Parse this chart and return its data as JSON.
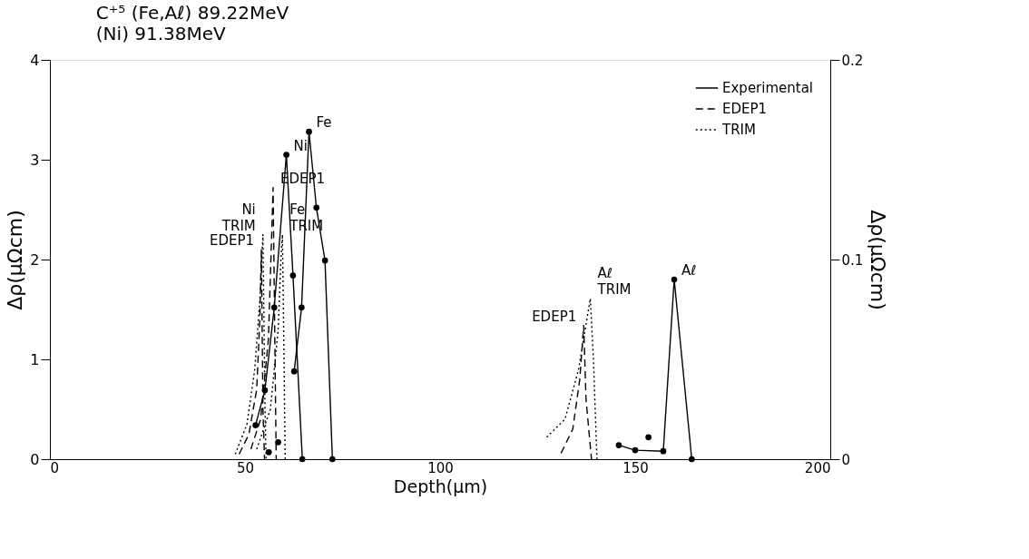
{
  "chart_data": {
    "type": "line",
    "title": "C⁺⁵ (Fe,Aℓ) 89.22MeV",
    "subtitle": "(Ni) 91.38MeV",
    "xlabel": "Depth(μm)",
    "ylabel": "Δρ(μΩcm)",
    "y2label": "Δρ(μΩcm)",
    "xlim": [
      0,
      200
    ],
    "xticks": [
      0,
      50,
      100,
      150,
      200
    ],
    "ylim": [
      0,
      4
    ],
    "yticks": [
      0,
      1,
      2,
      3,
      4
    ],
    "y2lim": [
      0,
      0.2
    ],
    "y2ticks": [
      0,
      0.1,
      0.2
    ],
    "grid": false,
    "legend": "top right",
    "series": [
      {
        "name": "Experimental",
        "color": "#000000",
        "line_style": "solid",
        "marker": "circle",
        "x": [
          52.7,
          55.1,
          57.5,
          60.6,
          62.3,
          64.7
        ],
        "values": [
          0.34,
          0.69,
          1.52,
          3.05,
          1.84,
          0
        ]
      },
      {
        "type": "scatter",
        "color": "#000000",
        "marker": "circle",
        "x": [
          56.1,
          58.5
        ],
        "values": [
          0.07,
          0.17
        ]
      },
      {
        "color": "#000000",
        "line_style": "solid",
        "marker": "circle",
        "x": [
          62.6,
          64.5,
          66.4,
          68.3,
          70.5,
          72.4
        ],
        "values": [
          0.88,
          1.52,
          3.28,
          2.52,
          1.99,
          0
        ]
      },
      {
        "axis": "y2",
        "color": "#000000",
        "line_style": "solid",
        "marker": "circle",
        "x": [
          145.8,
          150,
          157.2,
          160,
          164.5
        ],
        "values": [
          0.007,
          0.0045,
          0.004,
          0.09,
          0
        ]
      },
      {
        "type": "scatter",
        "axis": "y2",
        "color": "#000000",
        "marker": "circle",
        "x": [
          153.4
        ],
        "values": [
          0.011
        ]
      },
      {
        "name": "EDEP1",
        "color": "#000000",
        "line_style": "dashed",
        "marker": "none",
        "x": [
          48.5,
          51,
          53,
          53.8,
          54.2,
          54.6,
          55.0
        ],
        "values": [
          0.05,
          0.25,
          0.7,
          1.4,
          2.1,
          0.5,
          0
        ]
      },
      {
        "color": "#000000",
        "line_style": "dashed",
        "marker": "none",
        "x": [
          51.5,
          54,
          56,
          56.8,
          57.2,
          57.7,
          58.0
        ],
        "values": [
          0.1,
          0.4,
          1.2,
          2.2,
          2.72,
          1.0,
          0
        ]
      },
      {
        "color": "#000000",
        "line_style": "dashed",
        "marker": "none",
        "x": [
          131,
          134,
          135.8,
          136.8,
          137.4,
          138.8
        ],
        "values": [
          0.06,
          0.3,
          0.8,
          1.34,
          0.6,
          0
        ]
      },
      {
        "name": "TRIM",
        "color": "#000000",
        "line_style": "dotted",
        "marker": "none",
        "x": [
          47.5,
          50.5,
          52.5,
          53.8,
          54.6,
          55.1,
          55.4
        ],
        "values": [
          0.05,
          0.35,
          0.9,
          1.6,
          2.25,
          0.6,
          0
        ]
      },
      {
        "color": "#000000",
        "line_style": "dotted",
        "marker": "none",
        "x": [
          53,
          56.5,
          58.5,
          59.2,
          59.6,
          60.0,
          60.3
        ],
        "values": [
          0.1,
          0.5,
          1.3,
          2.0,
          2.25,
          1.0,
          0
        ]
      },
      {
        "color": "#000000",
        "line_style": "dotted",
        "marker": "none",
        "x": [
          127.3,
          132,
          135.5,
          138.5,
          139.3,
          140.2
        ],
        "values": [
          0.22,
          0.4,
          0.9,
          1.61,
          1.0,
          0
        ]
      }
    ],
    "annotations": [
      {
        "text": "Ni",
        "x": 60.6,
        "y": 3.05
      },
      {
        "text": "Fe",
        "x": 66.4,
        "y": 3.28
      },
      {
        "text": "EDEP1",
        "x": 57.2,
        "y": 2.72
      },
      {
        "text": "TRIM",
        "x": 59.6,
        "y": 2.25
      },
      {
        "text": "Fe",
        "x": 59.6,
        "y": 2.25
      },
      {
        "text": "TRIM",
        "x": 54.6,
        "y": 2.25
      },
      {
        "text": "EDEP1",
        "x": 54.2,
        "y": 2.1
      },
      {
        "text": "Ni",
        "x": 54.6,
        "y": 2.25
      },
      {
        "text": "EDEP1",
        "x": 136.8,
        "y": 1.34
      },
      {
        "text": "TRIM",
        "x": 138.5,
        "y": 1.61
      },
      {
        "text": "Aℓ",
        "x": 138.5,
        "y": 1.61
      },
      {
        "text": "Aℓ",
        "x": 160,
        "y": 1.8
      }
    ]
  }
}
